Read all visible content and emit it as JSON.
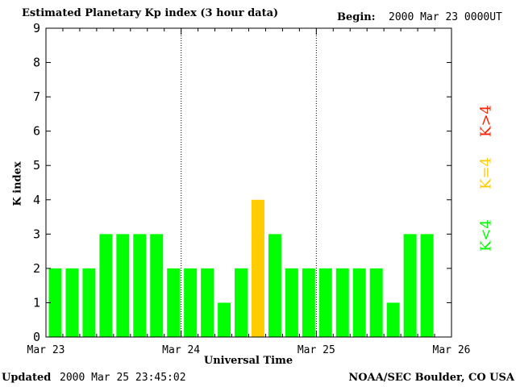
{
  "header": {
    "title": "Estimated Planetary Kp index (3 hour data)",
    "begin_label": "Begin:",
    "begin_value": "2000 Mar 23 0000UT"
  },
  "footer": {
    "updated_label": "Updated",
    "updated_value": "2000 Mar 25 23:45:02",
    "credit": "NOAA/SEC Boulder, CO USA"
  },
  "key": {
    "high": "K>4",
    "equal": "K=4",
    "low": "K<4"
  },
  "colors": {
    "low": "#00ff00",
    "equal": "#ffcc00",
    "high": "#ff2000",
    "axis": "#000000"
  },
  "chart_data": {
    "type": "bar",
    "xlabel": "Universal Time",
    "ylabel": "K index",
    "ylim": [
      0,
      9
    ],
    "yticks": [
      0,
      1,
      2,
      3,
      4,
      5,
      6,
      7,
      8,
      9
    ],
    "x_tick_labels": [
      "Mar 23",
      "Mar 24",
      "Mar 25",
      "Mar 26"
    ],
    "day_dividers": "dotted",
    "interval_hours": 3,
    "values": [
      2,
      2,
      2,
      3,
      3,
      3,
      3,
      2,
      2,
      2,
      1,
      2,
      4,
      3,
      2,
      2,
      2,
      2,
      2,
      2,
      1,
      3,
      3
    ]
  }
}
